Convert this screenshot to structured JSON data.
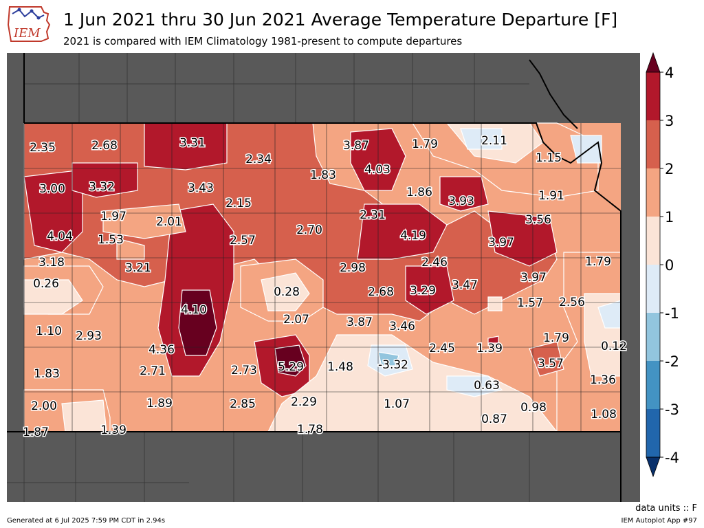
{
  "header": {
    "logo_text": "IEM",
    "title": "1 Jun 2021 thru 30 Jun 2021 Average Temperature Departure [F]",
    "subtitle": "2021 is compared with IEM Climatology 1981-present to compute departures"
  },
  "legend": {
    "ticks": [
      "4",
      "3",
      "2",
      "1",
      "0",
      "-1",
      "-2",
      "-3",
      "-4"
    ],
    "bands": [
      {
        "label": "<-4",
        "color": "#08306b"
      },
      {
        "label": "-4 to -3",
        "color": "#2166ac"
      },
      {
        "label": "-3 to -2",
        "color": "#4393c3"
      },
      {
        "label": "-2 to -1",
        "color": "#92c5de"
      },
      {
        "label": "-1 to 0",
        "color": "#deebf7"
      },
      {
        "label": "0 to 1",
        "color": "#fbe4d7"
      },
      {
        "label": "1 to 2",
        "color": "#f4a582"
      },
      {
        "label": "2 to 3",
        "color": "#d6604d"
      },
      {
        "label": "3 to 4",
        "color": "#b2182b"
      },
      {
        "label": ">4",
        "color": "#67001f"
      }
    ]
  },
  "map": {
    "outside_color": "#595959",
    "station_values": [
      "2.35",
      "2.68",
      "3.31",
      "2.34",
      "3.87",
      "1.79",
      "2.11",
      "4.03",
      "1.15",
      "3.00",
      "3.32",
      "3.43",
      "1.83",
      "1.86",
      "3.93",
      "1.91",
      "2.15",
      "1.97",
      "2.01",
      "2.31",
      "3.56",
      "4.04",
      "1.53",
      "2.57",
      "2.70",
      "4.19",
      "3.97",
      "3.18",
      "3.21",
      "2.98",
      "2.46",
      "1.79",
      "0.26",
      "3.97",
      "0.28",
      "2.68",
      "3.29",
      "3.47",
      "4.10",
      "1.57",
      "2.56",
      "2.07",
      "1.10",
      "2.93",
      "3.87",
      "3.46",
      "1.79",
      "4.36",
      "2.45",
      "1.39",
      "0.12",
      "5.29",
      "1.48",
      "-3.32",
      "3.57",
      "2.71",
      "2.73",
      "1.83",
      "1.36",
      "0.63",
      "1.89",
      "2.85",
      "2.29",
      "1.07",
      "2.00",
      "0.98",
      "0.87",
      "1.08",
      "1.87",
      "1.39",
      "1.78"
    ]
  },
  "footer": {
    "units": "data units :: F",
    "generated": "Generated at 6 Jul 2025 7:59 PM CDT in 2.94s",
    "app": "IEM Autoplot App #97"
  }
}
